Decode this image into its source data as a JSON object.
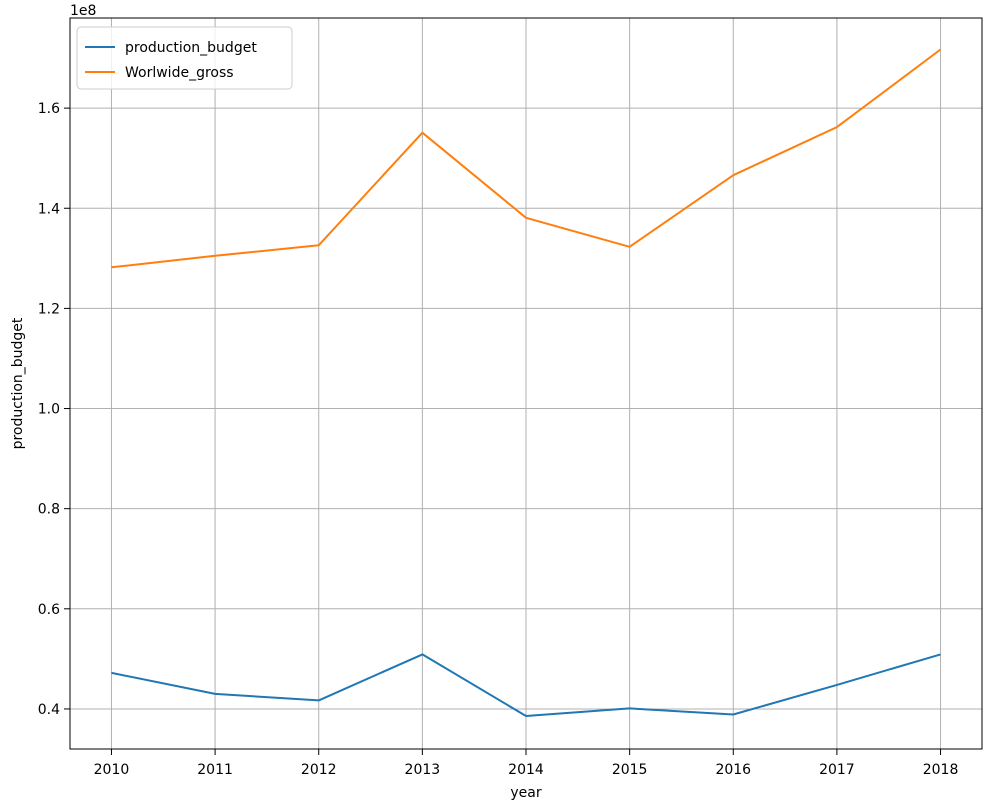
{
  "chart_data": {
    "type": "line",
    "title": "",
    "xlabel": "year",
    "ylabel": "production_budget",
    "y_offset_label": "1e8",
    "x": [
      2010,
      2011,
      2012,
      2013,
      2014,
      2015,
      2016,
      2017,
      2018
    ],
    "x_tick_labels": [
      "2010",
      "2011",
      "2012",
      "2013",
      "2014",
      "2015",
      "2016",
      "2017",
      "2018"
    ],
    "ylim": [
      0.32,
      1.78
    ],
    "y_ticks": [
      0.4,
      0.6,
      0.8,
      1.0,
      1.2,
      1.4,
      1.6
    ],
    "y_tick_labels": [
      "0.4",
      "0.6",
      "0.8",
      "1.0",
      "1.2",
      "1.4",
      "1.6"
    ],
    "grid": true,
    "legend_position": "top-left",
    "series": [
      {
        "name": "production_budget",
        "color": "#1f77b4",
        "values": [
          0.472,
          0.43,
          0.417,
          0.509,
          0.386,
          0.401,
          0.389,
          0.448,
          0.509
        ]
      },
      {
        "name": "Worlwide_gross",
        "color": "#ff7f0e",
        "values": [
          1.282,
          1.305,
          1.326,
          1.551,
          1.381,
          1.323,
          1.466,
          1.562,
          1.717
        ]
      }
    ]
  }
}
